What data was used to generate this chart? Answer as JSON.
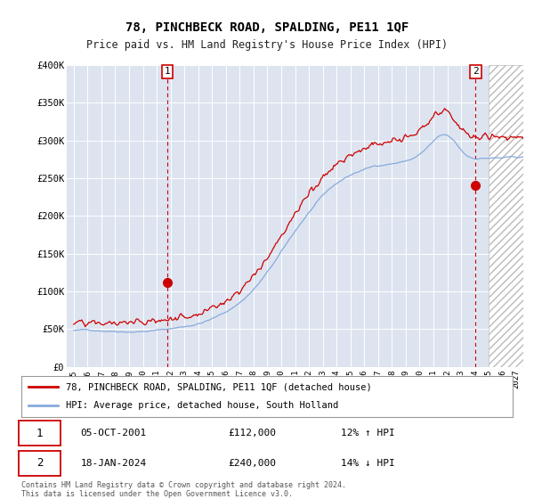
{
  "title": "78, PINCHBECK ROAD, SPALDING, PE11 1QF",
  "subtitle": "Price paid vs. HM Land Registry's House Price Index (HPI)",
  "red_label": "78, PINCHBECK ROAD, SPALDING, PE11 1QF (detached house)",
  "blue_label": "HPI: Average price, detached house, South Holland",
  "annotation1_date": "05-OCT-2001",
  "annotation1_price": "£112,000",
  "annotation1_hpi": "12% ↑ HPI",
  "annotation2_date": "18-JAN-2024",
  "annotation2_price": "£240,000",
  "annotation2_hpi": "14% ↓ HPI",
  "footer": "Contains HM Land Registry data © Crown copyright and database right 2024.\nThis data is licensed under the Open Government Licence v3.0.",
  "bg_color": "#ffffff",
  "plot_bg_color": "#dde4f0",
  "grid_color": "#ffffff",
  "red_color": "#cc0000",
  "blue_color": "#88aadd",
  "ylim": [
    0,
    400000
  ],
  "yticks": [
    0,
    50000,
    100000,
    150000,
    200000,
    250000,
    300000,
    350000,
    400000
  ],
  "sale1_x": 2001.75,
  "sale1_y": 112000,
  "sale2_x": 2024.05,
  "sale2_y": 240000,
  "vline1_x": 2001.75,
  "vline2_x": 2024.05,
  "hatch_start": 2025.0,
  "xmin": 1994.5,
  "xmax": 2027.5
}
